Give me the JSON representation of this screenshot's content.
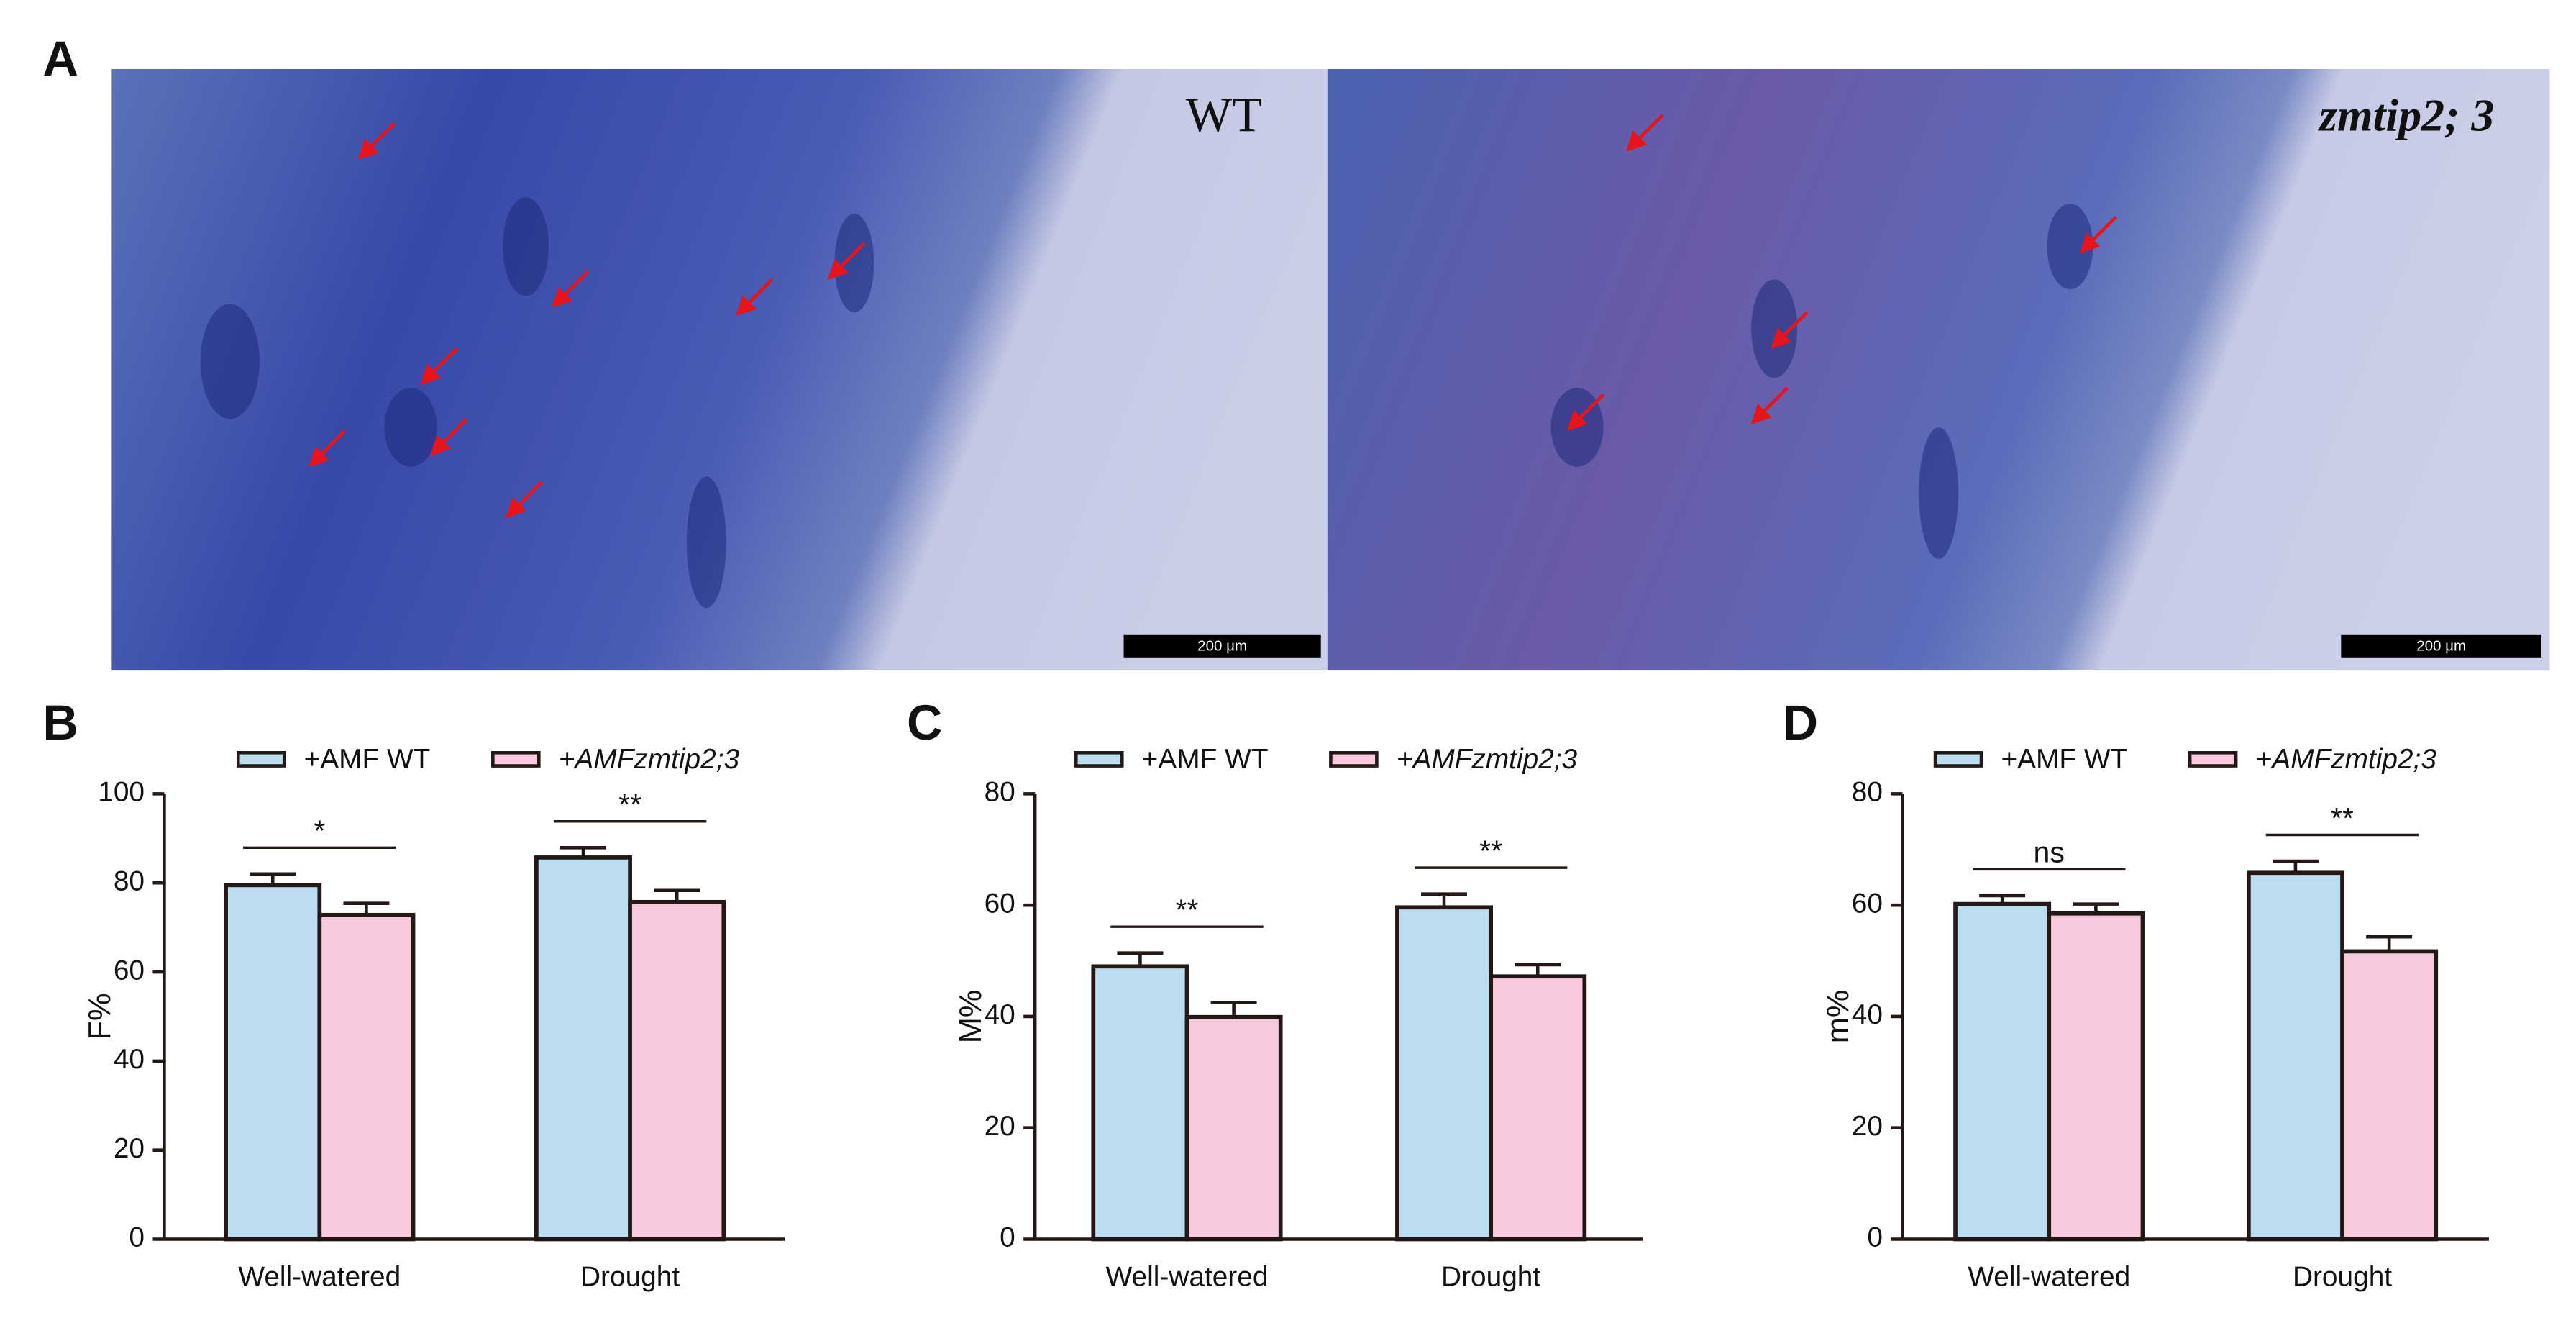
{
  "panel_a": {
    "label": "A",
    "images": [
      {
        "label": "WT",
        "scale_bar": "200 μm"
      },
      {
        "label": "zmtip2; 3",
        "scale_bar": "200 μm"
      }
    ]
  },
  "chart_data": [
    {
      "type": "bar",
      "panel_label": "B",
      "y_label": "F%",
      "categories": [
        "Well-watered",
        "Drought"
      ],
      "series": [
        {
          "name": "+AMF WT",
          "color": "#bcdcf0",
          "values": [
            79.5,
            85.7
          ],
          "errors": [
            2.5,
            2.2
          ]
        },
        {
          "name": "+AMFzmtip2;3",
          "color": "#f9c9de",
          "values": [
            72.8,
            75.7
          ],
          "errors": [
            2.6,
            2.6
          ]
        }
      ],
      "significance": [
        "*",
        "**"
      ],
      "ylim": [
        0,
        100
      ],
      "yticks": [
        0,
        20,
        40,
        60,
        80,
        100
      ]
    },
    {
      "type": "bar",
      "panel_label": "C",
      "y_label": "M%",
      "categories": [
        "Well-watered",
        "Drought"
      ],
      "series": [
        {
          "name": "+AMF WT",
          "color": "#bcdcf0",
          "values": [
            49,
            59.6
          ],
          "errors": [
            2.4,
            2.4
          ]
        },
        {
          "name": "+AMFzmtip2;3",
          "color": "#f9c9de",
          "values": [
            39.9,
            47.2
          ],
          "errors": [
            2.6,
            2.1
          ]
        }
      ],
      "significance": [
        "**",
        "**"
      ],
      "ylim": [
        0,
        80
      ],
      "yticks": [
        0,
        20,
        40,
        60,
        80
      ]
    },
    {
      "type": "bar",
      "panel_label": "D",
      "y_label": "m%",
      "categories": [
        "Well-watered",
        "Drought"
      ],
      "series": [
        {
          "name": "+AMF WT",
          "color": "#bcdcf0",
          "values": [
            60.2,
            65.8
          ],
          "errors": [
            1.5,
            2.1
          ]
        },
        {
          "name": "+AMFzmtip2;3",
          "color": "#f9c9de",
          "values": [
            58.5,
            51.7
          ],
          "errors": [
            1.7,
            2.6
          ]
        }
      ],
      "significance": [
        "ns",
        "**"
      ],
      "ylim": [
        0,
        80
      ],
      "yticks": [
        0,
        20,
        40,
        60,
        80
      ]
    }
  ]
}
